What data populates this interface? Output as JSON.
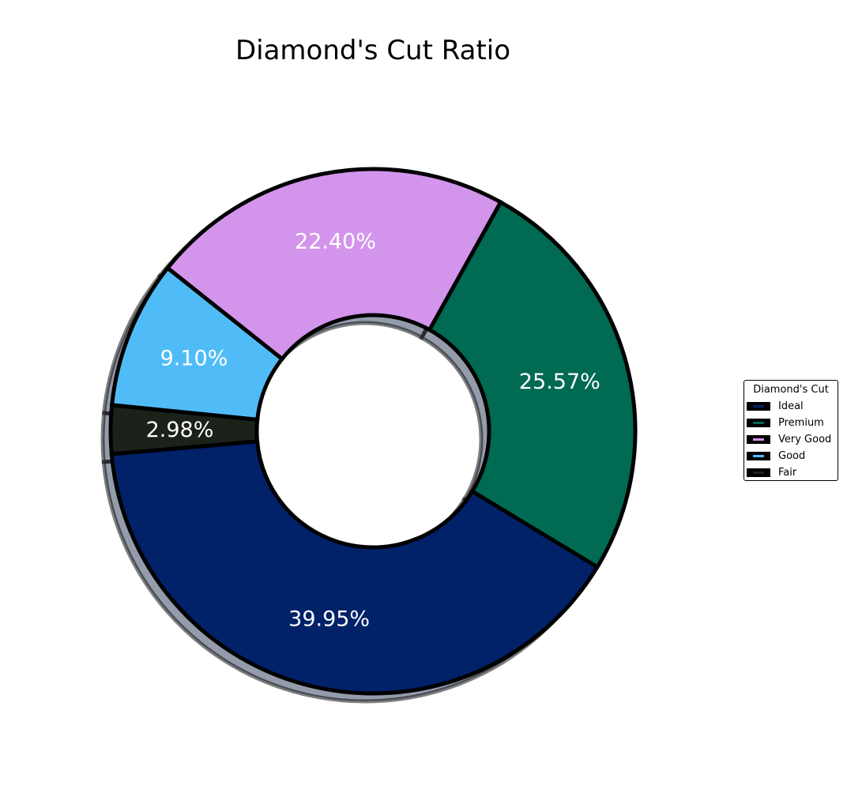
{
  "chart_data": {
    "type": "pie",
    "title": "Diamond's Cut Ratio",
    "legend_title": "Diamond's Cut",
    "legend_placement": "right",
    "donut": true,
    "shadow": true,
    "slices": [
      {
        "label": "Ideal",
        "value": 39.95,
        "pct_label": "39.95%",
        "color": "#012169"
      },
      {
        "label": "Premium",
        "value": 25.57,
        "pct_label": "25.57%",
        "color": "#006A53"
      },
      {
        "label": "Very Good",
        "value": 22.4,
        "pct_label": "22.40%",
        "color": "#D394EC"
      },
      {
        "label": "Good",
        "value": 9.1,
        "pct_label": "9.10%",
        "color": "#50BCF7"
      },
      {
        "label": "Fair",
        "value": 2.98,
        "pct_label": "2.98%",
        "color": "#1C2119"
      }
    ]
  }
}
